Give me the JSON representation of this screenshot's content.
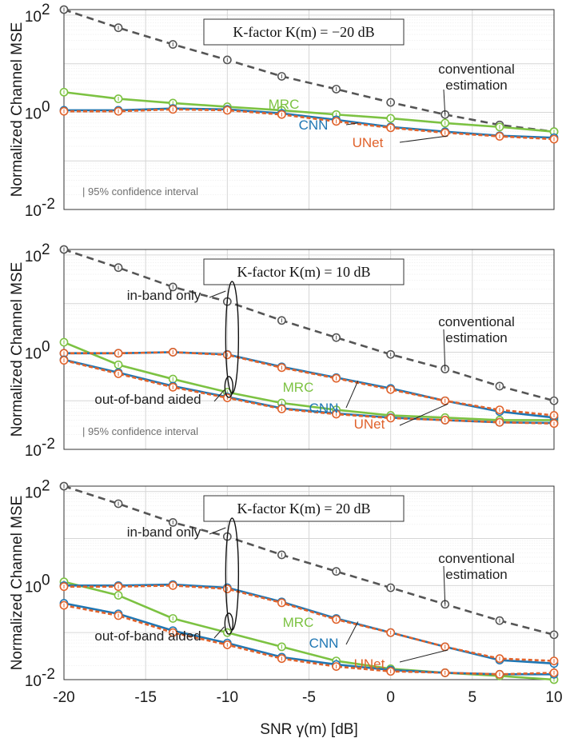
{
  "chart_data": [
    {
      "type": "line",
      "kfactor_label": "K-factor K(m) = −20 dB",
      "ylabel": "Normalized Channel MSE",
      "y_scale": "log",
      "ylim": [
        0.01,
        130
      ],
      "xlim": [
        -20,
        10
      ],
      "x": [
        -20,
        -16.67,
        -13.33,
        -10,
        -6.67,
        -3.33,
        0,
        3.33,
        6.67,
        10
      ],
      "y_ticks": [
        {
          "base": "10",
          "exp": "-2"
        },
        {
          "base": "10",
          "exp": "0"
        },
        {
          "base": "10",
          "exp": "2"
        }
      ],
      "series": [
        {
          "name": "conventional estimation",
          "color": "#555555",
          "dashed": true,
          "values": [
            130,
            55,
            25,
            12,
            5.5,
            3.0,
            1.6,
            0.9,
            0.55,
            0.4
          ]
        },
        {
          "name": "MRC",
          "color": "#7cc242",
          "dashed": false,
          "values": [
            2.6,
            1.9,
            1.55,
            1.3,
            1.1,
            0.9,
            0.75,
            0.6,
            0.5,
            0.4
          ]
        },
        {
          "name": "CNN",
          "color": "#1f77b4",
          "dashed": false,
          "values": [
            1.1,
            1.1,
            1.2,
            1.15,
            0.95,
            0.7,
            0.5,
            0.4,
            0.33,
            0.3
          ]
        },
        {
          "name": "UNet",
          "color": "#e0622b",
          "dashed": true,
          "values": [
            1.05,
            1.05,
            1.15,
            1.1,
            0.9,
            0.65,
            0.48,
            0.38,
            0.32,
            0.28
          ]
        }
      ],
      "series_labels": [
        {
          "text": "conventional",
          "series": 0
        },
        {
          "text": "estimation",
          "series": 0
        },
        {
          "text": "MRC",
          "series": 1
        },
        {
          "text": "CNN",
          "series": 2
        },
        {
          "text": "UNet",
          "series": 3
        }
      ],
      "annotations": [],
      "ci_note": "| 95% confidence interval"
    },
    {
      "type": "line",
      "kfactor_label": "K-factor K(m) = 10 dB",
      "ylabel": "Normalized Channel MSE",
      "y_scale": "log",
      "ylim": [
        0.01,
        130
      ],
      "xlim": [
        -20,
        10
      ],
      "x": [
        -20,
        -16.67,
        -13.33,
        -10,
        -6.67,
        -3.33,
        0,
        3.33,
        6.67,
        10
      ],
      "y_ticks": [
        {
          "base": "10",
          "exp": "-2"
        },
        {
          "base": "10",
          "exp": "0"
        },
        {
          "base": "10",
          "exp": "2"
        }
      ],
      "series": [
        {
          "name": "conventional estimation",
          "color": "#555555",
          "dashed": true,
          "values": [
            130,
            55,
            22,
            11,
            4.5,
            2.0,
            0.9,
            0.45,
            0.2,
            0.1
          ]
        },
        {
          "name": "MRC",
          "color": "#7cc242",
          "dashed": false,
          "values": [
            1.6,
            0.55,
            0.28,
            0.15,
            0.09,
            0.065,
            0.05,
            0.045,
            0.04,
            0.04
          ]
        },
        {
          "name": "CNN in-band only",
          "color": "#1f77b4",
          "dashed": false,
          "values": [
            0.95,
            0.95,
            1.0,
            0.9,
            0.5,
            0.3,
            0.18,
            0.1,
            0.06,
            0.045
          ]
        },
        {
          "name": "UNet in-band only",
          "color": "#e0622b",
          "dashed": true,
          "values": [
            0.95,
            0.95,
            1.0,
            0.88,
            0.48,
            0.29,
            0.17,
            0.1,
            0.065,
            0.05
          ]
        },
        {
          "name": "CNN out-of-band aided",
          "color": "#1f77b4",
          "dashed": false,
          "values": [
            0.7,
            0.38,
            0.2,
            0.12,
            0.07,
            0.055,
            0.045,
            0.04,
            0.036,
            0.035
          ]
        },
        {
          "name": "UNet out-of-band aided",
          "color": "#e0622b",
          "dashed": true,
          "values": [
            0.68,
            0.36,
            0.19,
            0.115,
            0.068,
            0.053,
            0.044,
            0.04,
            0.036,
            0.034
          ]
        }
      ],
      "series_labels": [
        {
          "text": "conventional",
          "series": 0
        },
        {
          "text": "estimation",
          "series": 0
        },
        {
          "text": "MRC",
          "series": 1
        },
        {
          "text": "CNN",
          "series": 2
        },
        {
          "text": "UNet",
          "series": 3
        }
      ],
      "annotations": [
        {
          "text": "in-band only"
        },
        {
          "text": "out-of-band aided"
        }
      ],
      "ci_note": "| 95% confidence interval"
    },
    {
      "type": "line",
      "kfactor_label": "K-factor K(m) = 20 dB",
      "ylabel": "Normalized Channel MSE",
      "y_scale": "log",
      "ylim": [
        0.01,
        130
      ],
      "xlim": [
        -20,
        10
      ],
      "x": [
        -20,
        -16.67,
        -13.33,
        -10,
        -6.67,
        -3.33,
        0,
        3.33,
        6.67,
        10
      ],
      "y_ticks": [
        {
          "base": "10",
          "exp": "-2"
        },
        {
          "base": "10",
          "exp": "0"
        },
        {
          "base": "10",
          "exp": "2"
        }
      ],
      "series": [
        {
          "name": "conventional estimation",
          "color": "#555555",
          "dashed": true,
          "values": [
            130,
            55,
            22,
            11,
            4.5,
            2.0,
            0.9,
            0.4,
            0.18,
            0.09
          ]
        },
        {
          "name": "MRC",
          "color": "#7cc242",
          "dashed": false,
          "values": [
            1.2,
            0.62,
            0.2,
            0.1,
            0.05,
            0.025,
            0.017,
            0.014,
            0.012,
            0.01
          ]
        },
        {
          "name": "CNN in-band only",
          "color": "#1f77b4",
          "dashed": false,
          "values": [
            1.0,
            1.0,
            1.05,
            0.9,
            0.45,
            0.2,
            0.1,
            0.05,
            0.026,
            0.022
          ]
        },
        {
          "name": "UNet in-band only",
          "color": "#e0622b",
          "dashed": true,
          "values": [
            0.95,
            0.95,
            1.0,
            0.85,
            0.43,
            0.19,
            0.1,
            0.05,
            0.028,
            0.025
          ]
        },
        {
          "name": "CNN out-of-band aided",
          "color": "#1f77b4",
          "dashed": false,
          "values": [
            0.42,
            0.25,
            0.11,
            0.06,
            0.03,
            0.021,
            0.016,
            0.014,
            0.013,
            0.013
          ]
        },
        {
          "name": "UNet out-of-band aided",
          "color": "#e0622b",
          "dashed": true,
          "values": [
            0.38,
            0.23,
            0.1,
            0.055,
            0.028,
            0.019,
            0.015,
            0.014,
            0.013,
            0.014
          ]
        }
      ],
      "series_labels": [
        {
          "text": "conventional",
          "series": 0
        },
        {
          "text": "estimation",
          "series": 0
        },
        {
          "text": "MRC",
          "series": 1
        },
        {
          "text": "CNN",
          "series": 2
        },
        {
          "text": "UNet",
          "series": 3
        }
      ],
      "annotations": [
        {
          "text": "in-band only"
        },
        {
          "text": "out-of-band aided"
        }
      ],
      "ci_note": ""
    }
  ],
  "x_ticks": [
    "-20",
    "-15",
    "-10",
    "-5",
    "0",
    "5",
    "10"
  ],
  "xlabel": "SNR γ(m) [dB]"
}
